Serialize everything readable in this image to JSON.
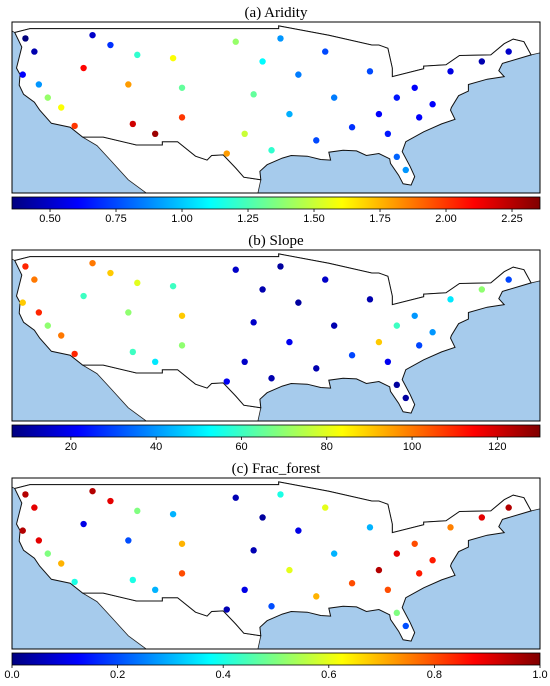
{
  "chart_data": [
    {
      "type": "map",
      "title": "(a) Aridity",
      "colormap": "jet",
      "clim": [
        0.356,
        2.356
      ],
      "cticks": [
        {
          "value": 0.5,
          "label": "0.50"
        },
        {
          "value": 0.75,
          "label": "0.75"
        },
        {
          "value": 1.0,
          "label": "1.00"
        },
        {
          "value": 1.25,
          "label": "1.25"
        },
        {
          "value": 1.5,
          "label": "1.50"
        },
        {
          "value": 1.75,
          "label": "1.75"
        },
        {
          "value": 2.0,
          "label": "2.00"
        },
        {
          "value": 2.25,
          "label": "2.25"
        }
      ],
      "lon": [
        -123.5,
        -122.5,
        -123.8,
        -122,
        -121,
        -119.5,
        -118,
        -116,
        -114,
        -111,
        -107,
        -106,
        -112,
        -117,
        -111.5,
        -106,
        -109,
        -100,
        -97,
        -98,
        -99,
        -96,
        -101,
        -94,
        -93,
        -90,
        -89,
        -91,
        -87,
        -85,
        -84,
        -82,
        -80,
        -83,
        -82,
        -78,
        -76,
        -72.5,
        -69.5,
        -79.5,
        -81,
        -95
      ],
      "lat": [
        47.5,
        45.5,
        42,
        40.5,
        38.5,
        37,
        34.2,
        48,
        46.5,
        45,
        44.5,
        40,
        40.5,
        43,
        34.5,
        35.5,
        33,
        47,
        44,
        39,
        33,
        30.5,
        30,
        36,
        42,
        45.5,
        38.5,
        32,
        34,
        42.5,
        36,
        38.5,
        40,
        33,
        29.5,
        37.5,
        42.5,
        44,
        45.5,
        35.5,
        27.5,
        47.5
      ],
      "values": [
        0.35,
        0.45,
        0.6,
        0.9,
        1.4,
        1.6,
        2.0,
        0.5,
        0.7,
        1.2,
        1.6,
        1.3,
        1.8,
        2.1,
        2.2,
        2.0,
        2.3,
        1.4,
        1.1,
        1.3,
        1.5,
        1.2,
        1.8,
        0.95,
        0.85,
        0.75,
        0.85,
        0.75,
        0.7,
        0.75,
        0.6,
        0.65,
        0.6,
        0.65,
        0.8,
        0.6,
        0.55,
        0.45,
        0.5,
        0.6,
        0.9,
        0.9
      ]
    },
    {
      "type": "map",
      "title": "(b) Slope",
      "colormap": "jet",
      "clim": [
        6.2,
        130
      ],
      "cticks": [
        20,
        40,
        60,
        80,
        100,
        120
      ],
      "lon": [
        -123.5,
        -122.5,
        -123.8,
        -122,
        -121,
        -119.5,
        -118,
        -116,
        -114,
        -111,
        -107,
        -106,
        -112,
        -117,
        -111.5,
        -106,
        -109,
        -100,
        -97,
        -98,
        -99,
        -96,
        -101,
        -94,
        -93,
        -90,
        -89,
        -91,
        -87,
        -85,
        -84,
        -82,
        -80,
        -83,
        -82,
        -78,
        -76,
        -72.5,
        -69.5,
        -79.5,
        -81,
        -95
      ],
      "lat": [
        47.5,
        45.5,
        42,
        40.5,
        38.5,
        37,
        34.2,
        48,
        46.5,
        45,
        44.5,
        40,
        40.5,
        43,
        34.5,
        35.5,
        33,
        47,
        44,
        39,
        33,
        30.5,
        30,
        36,
        42,
        45.5,
        38.5,
        32,
        34,
        42.5,
        36,
        38.5,
        40,
        33,
        29.5,
        37.5,
        42.5,
        44,
        45.5,
        35.5,
        27.5,
        47.5
      ],
      "values": [
        110,
        100,
        90,
        110,
        70,
        100,
        110,
        100,
        90,
        80,
        60,
        90,
        70,
        60,
        60,
        70,
        50,
        15,
        12,
        15,
        15,
        12,
        20,
        20,
        10,
        15,
        12,
        12,
        30,
        12,
        90,
        60,
        40,
        20,
        10,
        40,
        50,
        70,
        30,
        30,
        10,
        10
      ]
    },
    {
      "type": "map",
      "title": "(c) Frac_forest",
      "colormap": "jet",
      "clim": [
        0,
        1
      ],
      "cticks": [
        {
          "value": 0,
          "label": "0.0"
        },
        {
          "value": 0.2,
          "label": "0.2"
        },
        {
          "value": 0.4,
          "label": "0.4"
        },
        {
          "value": 0.6,
          "label": "0.6"
        },
        {
          "value": 0.8,
          "label": "0.8"
        },
        {
          "value": 1,
          "label": "1.0"
        }
      ],
      "lon": [
        -123.5,
        -122.5,
        -123.8,
        -122,
        -121,
        -119.5,
        -118,
        -116,
        -114,
        -111,
        -107,
        -106,
        -112,
        -117,
        -111.5,
        -106,
        -109,
        -100,
        -97,
        -98,
        -99,
        -96,
        -101,
        -94,
        -93,
        -90,
        -89,
        -91,
        -87,
        -85,
        -84,
        -82,
        -80,
        -83,
        -82,
        -78,
        -76,
        -72.5,
        -69.5,
        -79.5,
        -81,
        -95
      ],
      "lat": [
        47.5,
        45.5,
        42,
        40.5,
        38.5,
        37,
        34.2,
        48,
        46.5,
        45,
        44.5,
        40,
        40.5,
        43,
        34.5,
        35.5,
        33,
        47,
        44,
        39,
        33,
        30.5,
        30,
        36,
        42,
        45.5,
        38.5,
        32,
        34,
        42.5,
        36,
        38.5,
        40,
        33,
        29.5,
        37.5,
        42.5,
        44,
        45.5,
        35.5,
        27.5,
        47.5
      ],
      "values": [
        0.95,
        0.9,
        0.95,
        0.9,
        0.5,
        0.7,
        0.4,
        0.95,
        0.9,
        0.5,
        0.3,
        0.7,
        0.2,
        0.1,
        0.4,
        0.8,
        0.3,
        0.05,
        0.03,
        0.05,
        0.1,
        0.2,
        0.05,
        0.6,
        0.1,
        0.6,
        0.3,
        0.7,
        0.8,
        0.3,
        0.95,
        0.9,
        0.8,
        0.8,
        0.5,
        0.85,
        0.75,
        0.9,
        0.95,
        0.85,
        0.2,
        0.4
      ]
    }
  ]
}
